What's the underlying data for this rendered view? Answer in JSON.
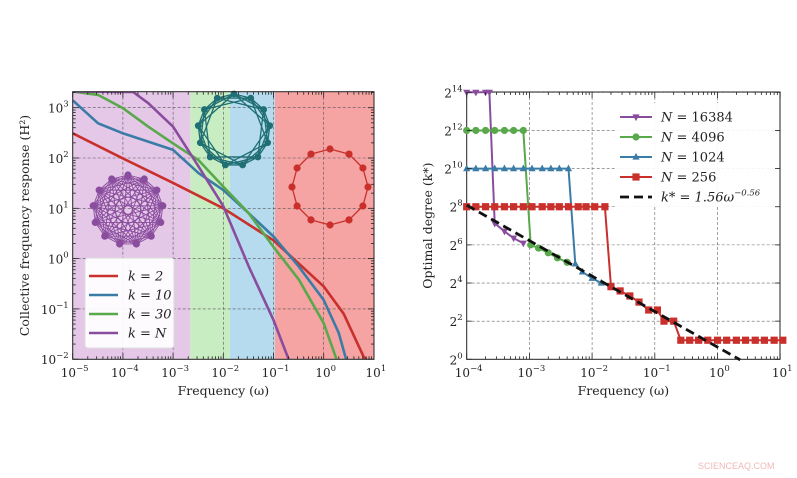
{
  "watermark": "SCIENCEAQ.COM",
  "colors": {
    "red": "#c9302c",
    "blue": "#3b7ca6",
    "green": "#5aa84c",
    "purple": "#8a4d9e",
    "teal": "#1f6f74",
    "dash": "#111111",
    "band_purple": "#e5c8e8",
    "band_green": "#c9edc2",
    "band_blue": "#b6dbef",
    "band_red": "#f5a3a3"
  },
  "chart_data": [
    {
      "type": "line",
      "xlabel": "Frequency (ω)",
      "ylabel": "Collective frequency response (H²)",
      "xscale": "log",
      "yscale": "log",
      "xlim": [
        1e-05,
        10
      ],
      "ylim": [
        0.01,
        2100
      ],
      "grid": true,
      "legend_position": "bottom-left",
      "x_ticks": [
        {
          "base": "10",
          "exp": "−5"
        },
        {
          "base": "10",
          "exp": "−4"
        },
        {
          "base": "10",
          "exp": "−3"
        },
        {
          "base": "10",
          "exp": "−2"
        },
        {
          "base": "10",
          "exp": "−1"
        },
        {
          "base": "10",
          "exp": "0"
        },
        {
          "base": "10",
          "exp": "1"
        }
      ],
      "y_ticks": [
        {
          "base": "10",
          "exp": "3"
        },
        {
          "base": "10",
          "exp": "2"
        },
        {
          "base": "10",
          "exp": "1"
        },
        {
          "base": "10",
          "exp": "0"
        },
        {
          "base": "10",
          "exp": "−1"
        },
        {
          "base": "10",
          "exp": "−2"
        }
      ],
      "background_bands": [
        {
          "from": 1e-05,
          "to": 0.0022,
          "color": "band_purple"
        },
        {
          "from": 0.0022,
          "to": 0.0135,
          "color": "band_green"
        },
        {
          "from": 0.0135,
          "to": 0.107,
          "color": "band_blue"
        },
        {
          "from": 0.107,
          "to": 10,
          "color": "band_red"
        }
      ],
      "series": [
        {
          "name": "k = 2",
          "color": "red",
          "x": [
            1e-05,
            0.0001,
            0.001,
            0.01,
            0.1,
            1,
            2.5,
            6.3,
            7.1
          ],
          "y": [
            310,
            98,
            32,
            10,
            2.3,
            0.28,
            0.08,
            0.011,
            0.01
          ]
        },
        {
          "name": "k = 10",
          "color": "blue",
          "x": [
            1e-05,
            3.2e-05,
            0.0001,
            0.001,
            0.0032,
            0.01,
            0.032,
            0.1,
            0.32,
            1,
            2,
            2.8
          ],
          "y": [
            1400,
            490,
            310,
            145,
            50,
            23,
            8,
            2.75,
            0.69,
            0.15,
            0.033,
            0.01
          ]
        },
        {
          "name": "k = 30",
          "color": "green",
          "x": [
            1e-05,
            3.2e-05,
            0.0001,
            0.00032,
            0.001,
            0.0032,
            0.01,
            0.032,
            0.1,
            0.32,
            1,
            1.8
          ],
          "y": [
            2100,
            1800,
            980,
            420,
            195,
            91,
            27,
            8,
            1.7,
            0.38,
            0.052,
            0.01
          ]
        },
        {
          "name": "k = N",
          "color": "purple",
          "x": [
            1e-05,
            0.00016,
            0.00032,
            0.001,
            0.0032,
            0.01,
            0.032,
            0.1,
            0.2
          ],
          "y": [
            2100,
            2050,
            1230,
            420,
            68,
            11,
            0.7,
            0.06,
            0.01
          ]
        }
      ],
      "network_insets": [
        "complete graph (k = N)",
        "ring lattice (k = 10)",
        "ring (k = 2)"
      ]
    },
    {
      "type": "line",
      "xlabel": "Frequency (ω)",
      "ylabel": "Optimal degree (k*)",
      "xscale": "log",
      "yscale": "log2",
      "xlim": [
        0.0001,
        10
      ],
      "ylim": [
        1,
        16384
      ],
      "grid": true,
      "legend_position": "top-right",
      "x_ticks": [
        {
          "base": "10",
          "exp": "−4"
        },
        {
          "base": "10",
          "exp": "−3"
        },
        {
          "base": "10",
          "exp": "−2"
        },
        {
          "base": "10",
          "exp": "−1"
        },
        {
          "base": "10",
          "exp": "0"
        },
        {
          "base": "10",
          "exp": "1"
        }
      ],
      "y_ticks": [
        {
          "base": "2",
          "exp": "0"
        },
        {
          "base": "2",
          "exp": "2"
        },
        {
          "base": "2",
          "exp": "4"
        },
        {
          "base": "2",
          "exp": "6"
        },
        {
          "base": "2",
          "exp": "8"
        },
        {
          "base": "2",
          "exp": "10"
        },
        {
          "base": "2",
          "exp": "12"
        },
        {
          "base": "2",
          "exp": "14"
        }
      ],
      "series": [
        {
          "name": "N = 16384",
          "color": "purple",
          "marker": "triangle-down",
          "x": [
            0.0001,
            0.00014,
            0.0002,
            0.00023,
            0.00028,
            0.0004,
            0.00056,
            0.0008
          ],
          "y": [
            16384,
            16384,
            16384,
            16384,
            140,
            105,
            82,
            68
          ]
        },
        {
          "name": "N = 4096",
          "color": "green",
          "marker": "circle",
          "x": [
            0.0001,
            0.00014,
            0.0002,
            0.00028,
            0.0004,
            0.00056,
            0.0008,
            0.00105,
            0.0014,
            0.002,
            0.0028,
            0.004
          ],
          "y": [
            4096,
            4096,
            4096,
            4096,
            4096,
            4096,
            4096,
            64,
            57,
            48,
            40,
            34
          ]
        },
        {
          "name": "N = 1024",
          "color": "blue",
          "marker": "triangle-up",
          "x": [
            0.0001,
            0.00014,
            0.0002,
            0.00028,
            0.0004,
            0.00056,
            0.0008,
            0.0011,
            0.0016,
            0.0022,
            0.003,
            0.0042,
            0.0054,
            0.007,
            0.01,
            0.014
          ],
          "y": [
            1024,
            1024,
            1024,
            1024,
            1024,
            1024,
            1024,
            1024,
            1024,
            1024,
            1024,
            1024,
            32,
            24,
            19,
            16
          ]
        },
        {
          "name": "N = 256",
          "color": "red",
          "marker": "square",
          "x": [
            0.0001,
            0.00014,
            0.0002,
            0.00028,
            0.0004,
            0.00056,
            0.0008,
            0.0011,
            0.0016,
            0.0022,
            0.003,
            0.0042,
            0.006,
            0.008,
            0.011,
            0.016,
            0.02,
            0.028,
            0.04,
            0.056,
            0.08,
            0.11,
            0.14,
            0.2,
            0.26,
            0.36,
            0.5,
            0.7,
            1,
            1.4,
            2,
            2.8,
            4,
            5.6,
            8,
            11
          ],
          "y": [
            256,
            256,
            256,
            256,
            256,
            256,
            256,
            256,
            256,
            256,
            256,
            256,
            256,
            256,
            256,
            256,
            14,
            12,
            10,
            8,
            6,
            6,
            4,
            4,
            2,
            2,
            2,
            2,
            2,
            2,
            2,
            2,
            2,
            2,
            2,
            2
          ]
        },
        {
          "name": "k* = 1.56ω^−0.56",
          "color": "dash",
          "style": "dashed",
          "fit": {
            "a": 1.56,
            "b": -0.56
          },
          "x": [
            0.0001,
            2.3
          ]
        }
      ],
      "legend_labels": [
        {
          "lhs": "N",
          "rhs": "= 16384"
        },
        {
          "lhs": "N",
          "rhs": "= 4096"
        },
        {
          "lhs": "N",
          "rhs": "= 1024"
        },
        {
          "lhs": "N",
          "rhs": "= 256"
        },
        {
          "lhs": "k* = 1.56ω",
          "rhs": "−0.56"
        }
      ]
    }
  ]
}
